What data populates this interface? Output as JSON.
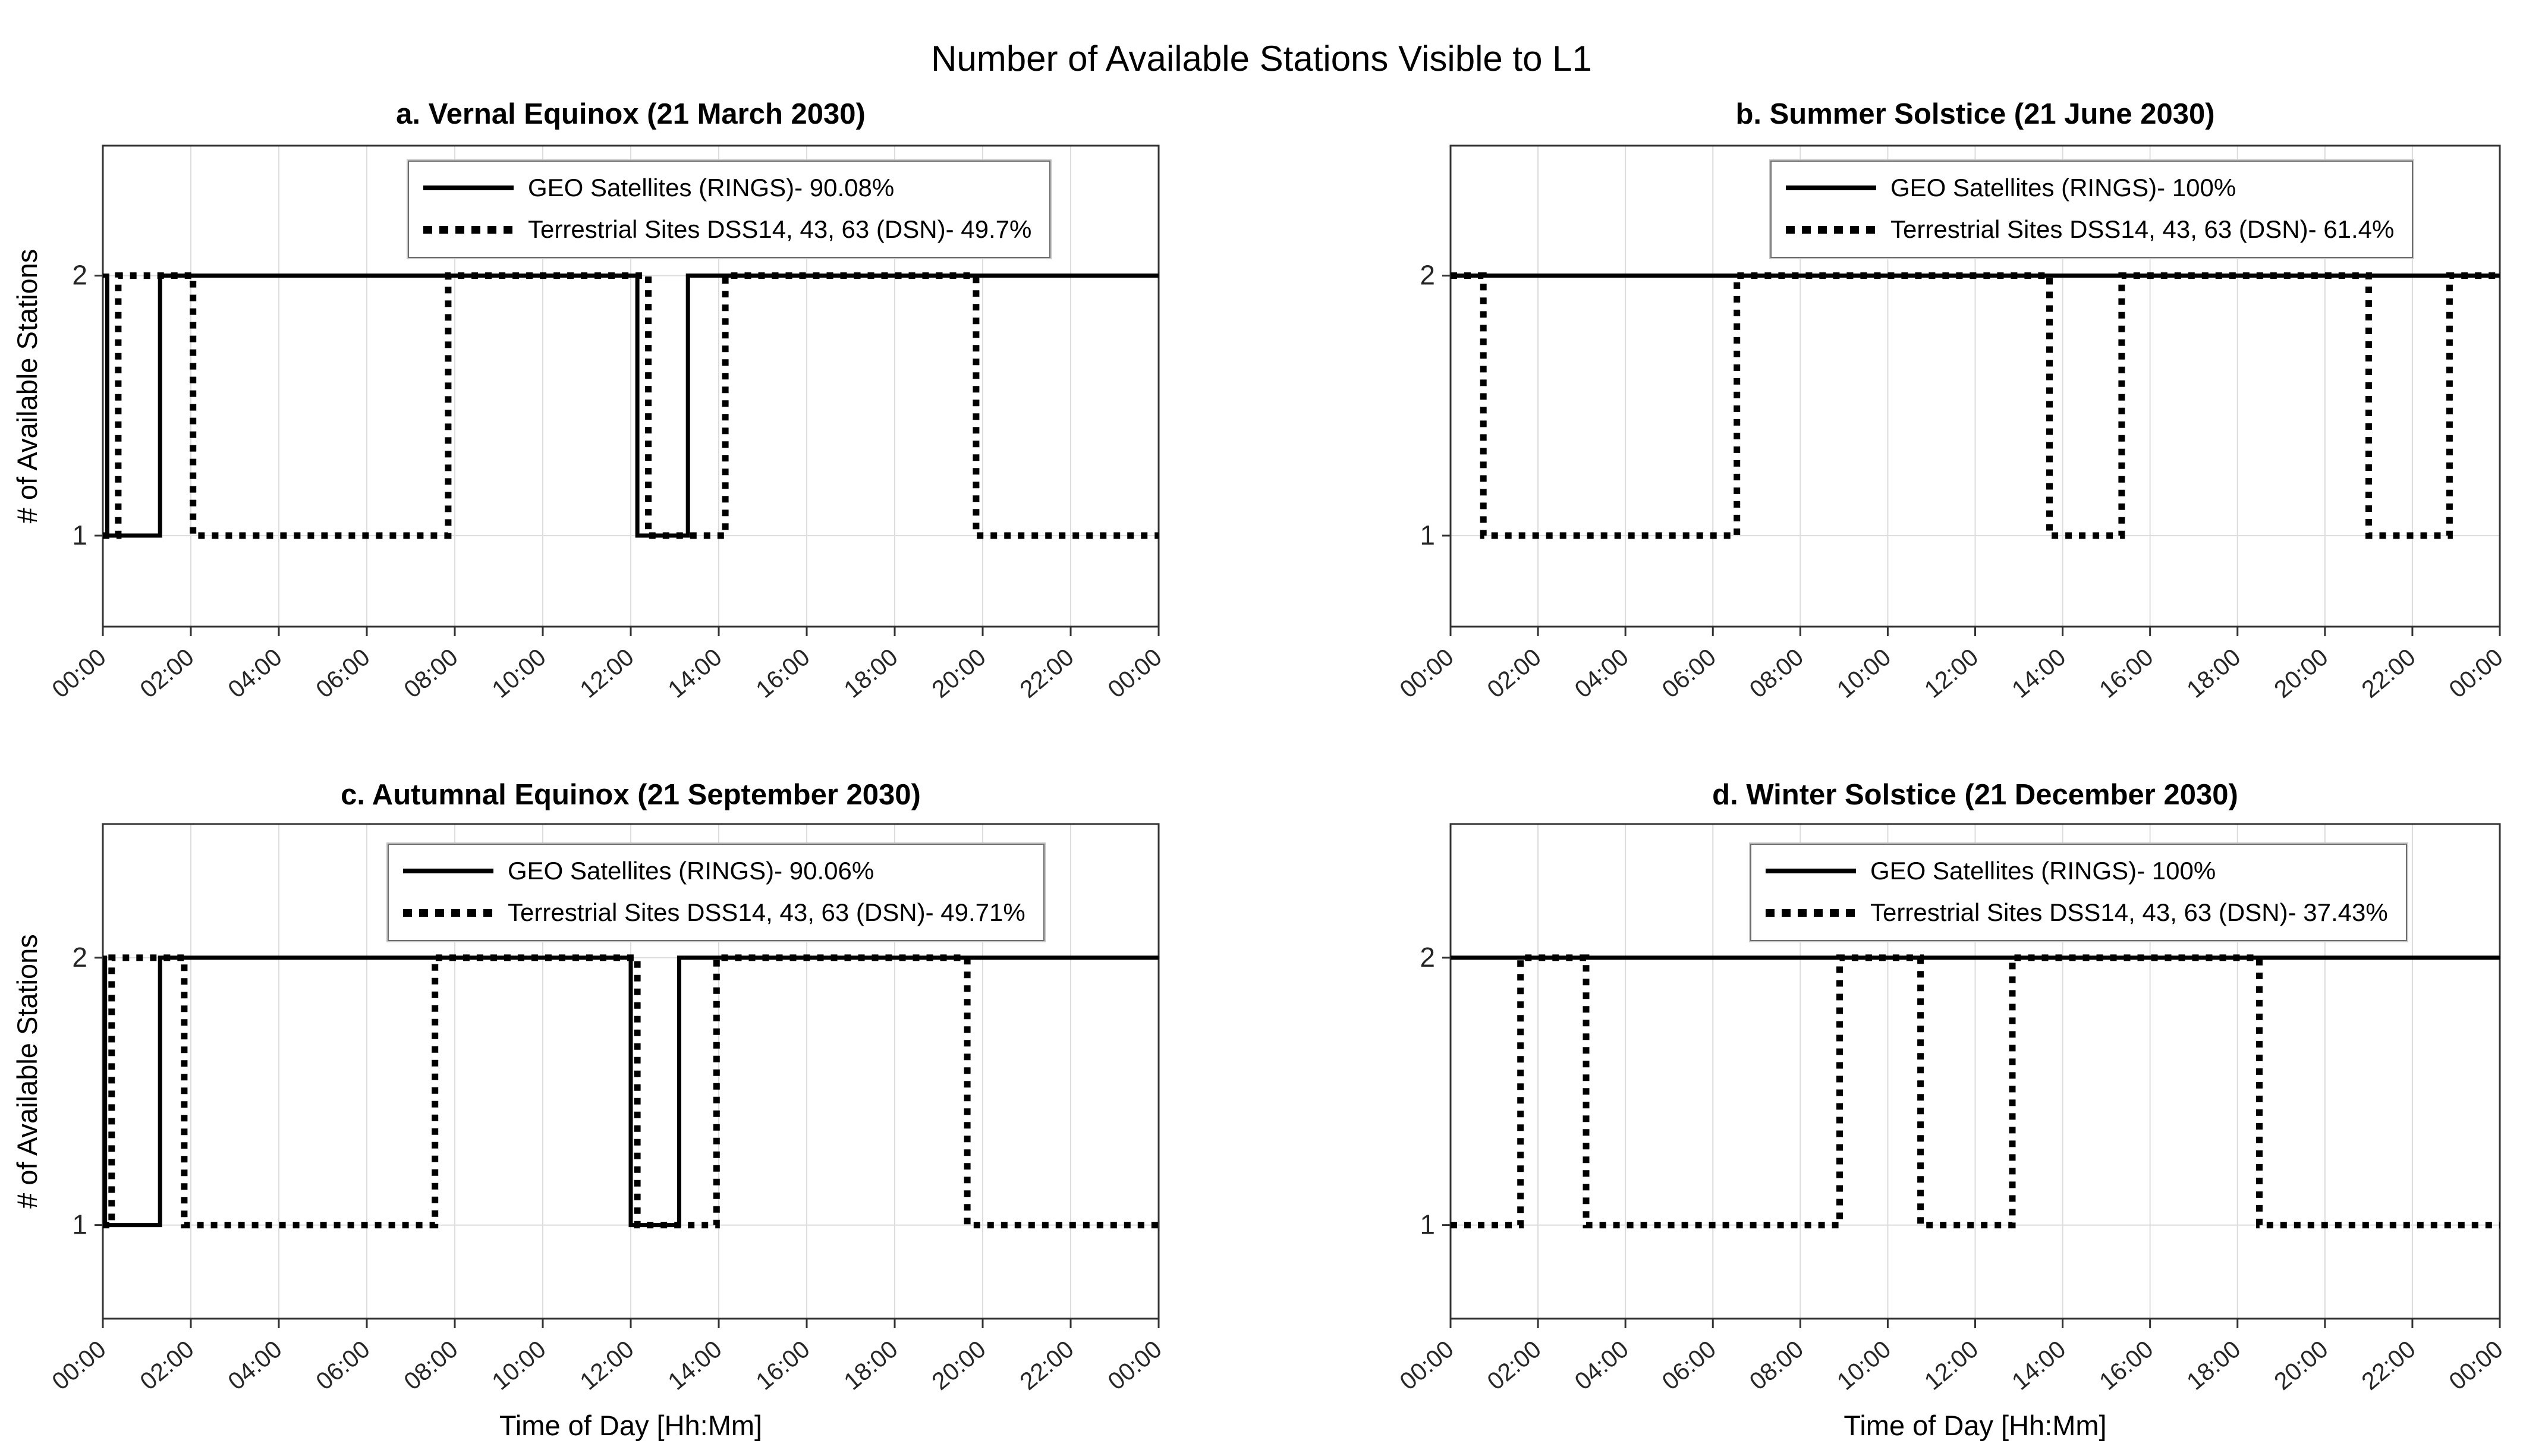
{
  "page_title": "Number of Available Stations Visible to L1",
  "colors": {
    "line": "#000000",
    "grid": "#dcdcdc",
    "axis": "#333333",
    "tick_text": "#262626",
    "background": "#ffffff"
  },
  "chart_common": {
    "x_axis_label": "Time of Day [Hh:Mm]",
    "y_axis_label": "# of Available Stations",
    "x_tick_labels": [
      "00:00",
      "02:00",
      "04:00",
      "06:00",
      "08:00",
      "10:00",
      "12:00",
      "14:00",
      "16:00",
      "18:00",
      "20:00",
      "22:00",
      "00:00"
    ],
    "x_tick_hours": [
      0,
      2,
      4,
      6,
      8,
      10,
      12,
      14,
      16,
      18,
      20,
      22,
      24
    ],
    "y_ticks": [
      {
        "value": 1,
        "label": "1"
      },
      {
        "value": 2,
        "label": "2"
      }
    ],
    "x_range_hours": [
      0,
      24
    ],
    "y_range": [
      0.65,
      2.5
    ],
    "grid": "on",
    "legend_position": "inside-top"
  },
  "chart_data": [
    {
      "id": "a",
      "type": "line",
      "title": "a. Vernal Equinox (21 March 2030)",
      "series": [
        {
          "name": "GEO Satellites (RINGS)",
          "availability_pct": 90.08,
          "style": "solid",
          "legend_label": "GEO Satellites (RINGS)- 90.08%",
          "steps_hours_value": [
            [
              0,
              2
            ],
            [
              0.1,
              1
            ],
            [
              1.3,
              2
            ],
            [
              12.15,
              1
            ],
            [
              13.3,
              2
            ]
          ]
        },
        {
          "name": "Terrestrial Sites DSS14, 43, 63 (DSN)",
          "availability_pct": 49.7,
          "style": "dotted",
          "legend_label": "Terrestrial Sites DSS14, 43, 63 (DSN)- 49.7%",
          "steps_hours_value": [
            [
              0,
              1
            ],
            [
              0.35,
              2
            ],
            [
              2.05,
              1
            ],
            [
              7.85,
              2
            ],
            [
              12.4,
              1
            ],
            [
              14.15,
              2
            ],
            [
              19.85,
              1
            ]
          ]
        }
      ]
    },
    {
      "id": "b",
      "type": "line",
      "title": "b. Summer Solstice (21 June 2030)",
      "series": [
        {
          "name": "GEO Satellites (RINGS)",
          "availability_pct": 100,
          "style": "solid",
          "legend_label": "GEO Satellites (RINGS)- 100%",
          "steps_hours_value": [
            [
              0,
              2
            ]
          ]
        },
        {
          "name": "Terrestrial Sites DSS14, 43, 63 (DSN)",
          "availability_pct": 61.4,
          "style": "dotted",
          "legend_label": "Terrestrial Sites DSS14, 43, 63 (DSN)- 61.4%",
          "steps_hours_value": [
            [
              0,
              2
            ],
            [
              0.75,
              1
            ],
            [
              6.55,
              2
            ],
            [
              13.7,
              1
            ],
            [
              15.35,
              2
            ],
            [
              21.0,
              1
            ],
            [
              22.85,
              2
            ]
          ]
        }
      ]
    },
    {
      "id": "c",
      "type": "line",
      "title": "c. Autumnal Equinox (21 September 2030)",
      "series": [
        {
          "name": "GEO Satellites (RINGS)",
          "availability_pct": 90.06,
          "style": "solid",
          "legend_label": "GEO Satellites (RINGS)- 90.06%",
          "steps_hours_value": [
            [
              0,
              2
            ],
            [
              0.05,
              1
            ],
            [
              1.3,
              2
            ],
            [
              12.0,
              1
            ],
            [
              13.1,
              2
            ]
          ]
        },
        {
          "name": "Terrestrial Sites DSS14, 43, 63 (DSN)",
          "availability_pct": 49.71,
          "style": "dotted",
          "legend_label": "Terrestrial Sites DSS14, 43, 63 (DSN)- 49.71%",
          "steps_hours_value": [
            [
              0,
              1
            ],
            [
              0.2,
              2
            ],
            [
              1.85,
              1
            ],
            [
              7.55,
              2
            ],
            [
              12.15,
              1
            ],
            [
              13.95,
              2
            ],
            [
              19.65,
              1
            ]
          ]
        }
      ]
    },
    {
      "id": "d",
      "type": "line",
      "title": "d. Winter Solstice (21 December 2030)",
      "series": [
        {
          "name": "GEO Satellites (RINGS)",
          "availability_pct": 100,
          "style": "solid",
          "legend_label": "GEO Satellites (RINGS)- 100%",
          "steps_hours_value": [
            [
              0,
              2
            ]
          ]
        },
        {
          "name": "Terrestrial Sites DSS14, 43, 63 (DSN)",
          "availability_pct": 37.43,
          "style": "dotted",
          "legend_label": "Terrestrial Sites DSS14, 43, 63 (DSN)- 37.43%",
          "steps_hours_value": [
            [
              0,
              1
            ],
            [
              1.6,
              2
            ],
            [
              3.1,
              1
            ],
            [
              8.9,
              2
            ],
            [
              10.75,
              1
            ],
            [
              12.85,
              2
            ],
            [
              18.5,
              1
            ]
          ]
        }
      ]
    }
  ]
}
